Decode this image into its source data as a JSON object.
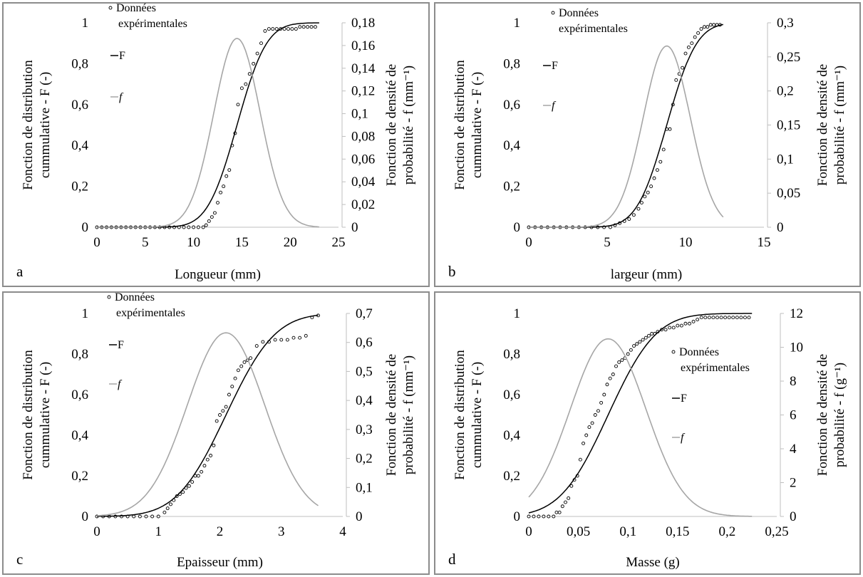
{
  "chart_data": [
    {
      "panel_label": "a",
      "type": "line",
      "xlabel": "Longueur (mm)",
      "ylabel_left": [
        "Fonction de distribution",
        "cummulative - F (-)"
      ],
      "ylabel_right": [
        "Fonction de densité de",
        "probabilité - f (mm⁻¹)"
      ],
      "xlim": [
        0,
        25
      ],
      "xticks": [
        0,
        5,
        10,
        15,
        20,
        25
      ],
      "xtick_labels": [
        "0",
        "5",
        "10",
        "15",
        "20",
        "25"
      ],
      "ylim_left": [
        0,
        1
      ],
      "yticks_left": [
        0,
        0.2,
        0.4,
        0.6,
        0.8,
        1
      ],
      "ytick_labels_left": [
        "0",
        "0,2",
        "0,4",
        "0,6",
        "0,8",
        "1"
      ],
      "ylim_right": [
        0,
        0.18
      ],
      "yticks_right": [
        0,
        0.02,
        0.04,
        0.06,
        0.08,
        0.1,
        0.12,
        0.14,
        0.16,
        0.18
      ],
      "ytick_labels_right": [
        "0",
        "0,02",
        "0,04",
        "0,06",
        "0,08",
        "0,1",
        "0,12",
        "0,14",
        "0,16",
        "0,18"
      ],
      "legend": [
        "Données",
        "expérimentales",
        "F",
        "f"
      ],
      "legend_position": "top-left",
      "series": [
        {
          "name": "Données expérimentales",
          "kind": "points",
          "axis": "left",
          "x": [
            0,
            0.5,
            1,
            1.5,
            2,
            2.5,
            3,
            3.5,
            4,
            4.5,
            5,
            5.5,
            6,
            6.5,
            7,
            7.5,
            8,
            8.5,
            9,
            9.5,
            10,
            10.5,
            11,
            11.3,
            11.6,
            11.9,
            12.2,
            12.5,
            12.8,
            13.1,
            13.4,
            13.7,
            14,
            14.3,
            14.6,
            15,
            15.4,
            15.8,
            16.2,
            16.6,
            17,
            17.4,
            17.8,
            18.2,
            18.6,
            19,
            19.4,
            19.8,
            20.2,
            20.6,
            21,
            21.4,
            21.8,
            22.2,
            22.6
          ],
          "y": [
            0,
            0,
            0,
            0,
            0,
            0,
            0,
            0,
            0,
            0,
            0,
            0,
            0,
            0,
            0,
            0,
            0,
            0,
            0,
            0,
            0,
            0,
            0,
            0.01,
            0.03,
            0.05,
            0.07,
            0.12,
            0.17,
            0.2,
            0.25,
            0.28,
            0.4,
            0.46,
            0.6,
            0.68,
            0.7,
            0.75,
            0.8,
            0.85,
            0.9,
            0.96,
            0.97,
            0.97,
            0.97,
            0.97,
            0.97,
            0.97,
            0.97,
            0.97,
            0.98,
            0.98,
            0.98,
            0.98,
            0.98
          ]
        },
        {
          "name": "F",
          "kind": "normal_cdf",
          "axis": "left",
          "mu": 14.5,
          "sigma": 2.4,
          "x_range": [
            0,
            23
          ]
        },
        {
          "name": "f",
          "kind": "normal_pdf",
          "axis": "right",
          "mu": 14.5,
          "sigma": 2.4,
          "x_range": [
            0,
            23
          ]
        }
      ]
    },
    {
      "panel_label": "b",
      "type": "line",
      "xlabel": "largeur (mm)",
      "ylabel_left": [
        "Fonction de distribution",
        "cummulative - F (-)"
      ],
      "ylabel_right": [
        "Fonction de densité de",
        "probabilité - f (mm⁻¹)"
      ],
      "xlim": [
        0,
        15
      ],
      "xticks": [
        0,
        5,
        10,
        15
      ],
      "xtick_labels": [
        "0",
        "5",
        "10",
        "15"
      ],
      "ylim_left": [
        0,
        1
      ],
      "yticks_left": [
        0,
        0.2,
        0.4,
        0.6,
        0.8,
        1
      ],
      "ytick_labels_left": [
        "0",
        "0,2",
        "0,4",
        "0,6",
        "0,8",
        "1"
      ],
      "ylim_right": [
        0,
        0.3
      ],
      "yticks_right": [
        0,
        0.05,
        0.1,
        0.15,
        0.2,
        0.25,
        0.3
      ],
      "ytick_labels_right": [
        "0",
        "0,05",
        "0,1",
        "0,15",
        "0,2",
        "0,25",
        "0,3"
      ],
      "legend": [
        "Données",
        "expérimentales",
        "F",
        "f"
      ],
      "legend_position": "top-left",
      "series": [
        {
          "name": "Données expérimentales",
          "kind": "points",
          "axis": "left",
          "x": [
            0,
            0.4,
            0.8,
            1.2,
            1.6,
            2,
            2.4,
            2.8,
            3.2,
            3.6,
            4,
            4.4,
            4.8,
            5.2,
            5.5,
            5.8,
            6.1,
            6.4,
            6.7,
            7,
            7.2,
            7.4,
            7.6,
            7.8,
            8,
            8.2,
            8.4,
            8.6,
            8.8,
            9,
            9.2,
            9.4,
            9.6,
            9.8,
            10,
            10.2,
            10.4,
            10.6,
            10.8,
            11,
            11.2,
            11.4,
            11.6,
            11.8,
            12,
            12.2
          ],
          "y": [
            0,
            0,
            0,
            0,
            0,
            0,
            0,
            0,
            0,
            0,
            0,
            0,
            0,
            0,
            0.01,
            0.02,
            0.03,
            0.04,
            0.06,
            0.09,
            0.12,
            0.15,
            0.17,
            0.2,
            0.24,
            0.28,
            0.32,
            0.38,
            0.48,
            0.48,
            0.6,
            0.72,
            0.75,
            0.78,
            0.85,
            0.88,
            0.9,
            0.93,
            0.95,
            0.97,
            0.98,
            0.98,
            0.99,
            0.99,
            0.99,
            0.99
          ]
        },
        {
          "name": "F",
          "kind": "normal_cdf",
          "axis": "left",
          "mu": 8.8,
          "sigma": 1.5,
          "x_range": [
            0,
            12.4
          ]
        },
        {
          "name": "f",
          "kind": "normal_pdf",
          "axis": "right",
          "mu": 8.8,
          "sigma": 1.5,
          "x_range": [
            0,
            12.4
          ]
        }
      ]
    },
    {
      "panel_label": "c",
      "type": "line",
      "xlabel": "Epaisseur (mm)",
      "ylabel_left": [
        "Fonction de distribution",
        "cummulative - F (-)"
      ],
      "ylabel_right": [
        "Fonction de densité de",
        "probabilité - f (mm⁻¹)"
      ],
      "xlim": [
        0,
        4
      ],
      "xticks": [
        0,
        1,
        2,
        3,
        4
      ],
      "xtick_labels": [
        "0",
        "1",
        "2",
        "3",
        "4"
      ],
      "ylim_left": [
        0,
        1
      ],
      "yticks_left": [
        0,
        0.2,
        0.4,
        0.6,
        0.8,
        1
      ],
      "ytick_labels_left": [
        "0",
        "0,2",
        "0,4",
        "0,6",
        "0,8",
        "1"
      ],
      "ylim_right": [
        0,
        0.7
      ],
      "yticks_right": [
        0,
        0.1,
        0.2,
        0.3,
        0.4,
        0.5,
        0.6,
        0.7
      ],
      "ytick_labels_right": [
        "0",
        "0,1",
        "0,2",
        "0,3",
        "0,4",
        "0,5",
        "0,6",
        "0,7"
      ],
      "legend": [
        "Données",
        "expérimentales",
        "F",
        "f"
      ],
      "legend_position": "top-left",
      "series": [
        {
          "name": "Données expérimentales",
          "kind": "points",
          "axis": "left",
          "x": [
            0,
            0.1,
            0.2,
            0.3,
            0.4,
            0.5,
            0.6,
            0.7,
            0.8,
            0.9,
            1,
            1.1,
            1.15,
            1.2,
            1.25,
            1.3,
            1.35,
            1.4,
            1.45,
            1.5,
            1.55,
            1.6,
            1.65,
            1.7,
            1.75,
            1.8,
            1.85,
            1.9,
            1.95,
            2,
            2.05,
            2.1,
            2.15,
            2.2,
            2.25,
            2.3,
            2.35,
            2.4,
            2.45,
            2.5,
            2.6,
            2.7,
            2.8,
            2.9,
            3,
            3.1,
            3.2,
            3.3,
            3.4,
            3.5,
            3.6
          ],
          "y": [
            0,
            0,
            0,
            0,
            0,
            0,
            0,
            0,
            0,
            0,
            0,
            0.02,
            0.04,
            0.06,
            0.08,
            0.1,
            0.11,
            0.12,
            0.14,
            0.15,
            0.17,
            0.2,
            0.2,
            0.22,
            0.25,
            0.28,
            0.3,
            0.35,
            0.47,
            0.5,
            0.52,
            0.54,
            0.6,
            0.64,
            0.68,
            0.72,
            0.74,
            0.76,
            0.77,
            0.78,
            0.84,
            0.86,
            0.86,
            0.87,
            0.87,
            0.87,
            0.88,
            0.88,
            0.89,
            0.98,
            0.99
          ]
        },
        {
          "name": "F",
          "kind": "normal_cdf",
          "axis": "left",
          "mu": 2.1,
          "sigma": 0.63,
          "x_range": [
            0,
            3.6
          ]
        },
        {
          "name": "f",
          "kind": "normal_pdf",
          "axis": "right",
          "mu": 2.1,
          "sigma": 0.63,
          "x_range": [
            0,
            3.6
          ]
        }
      ]
    },
    {
      "panel_label": "d",
      "type": "line",
      "xlabel": "Masse (g)",
      "ylabel_left": [
        "Fonction de distribution",
        "cummulative - F (-)"
      ],
      "ylabel_right": [
        "Fonction de densité de",
        "probabilité - f (g⁻¹)"
      ],
      "xlim": [
        0,
        0.25
      ],
      "xticks": [
        0,
        0.05,
        0.1,
        0.15,
        0.2,
        0.25
      ],
      "xtick_labels": [
        "0",
        "0,05",
        "0,1",
        "0,15",
        "0,2",
        "0,25"
      ],
      "ylim_left": [
        0,
        1
      ],
      "yticks_left": [
        0,
        0.2,
        0.4,
        0.6,
        0.8,
        1
      ],
      "ytick_labels_left": [
        "0",
        "0,2",
        "0,4",
        "0,6",
        "0,8",
        "1"
      ],
      "ylim_right": [
        0,
        12
      ],
      "yticks_right": [
        0,
        2,
        4,
        6,
        8,
        10,
        12
      ],
      "ytick_labels_right": [
        "0",
        "2",
        "4",
        "6",
        "8",
        "10",
        "12"
      ],
      "legend": [
        "Données",
        "expérimentales",
        "F",
        "f"
      ],
      "legend_position": "center-right",
      "series": [
        {
          "name": "Données expérimentales",
          "kind": "points",
          "axis": "left",
          "x": [
            0,
            0.005,
            0.01,
            0.015,
            0.02,
            0.025,
            0.028,
            0.031,
            0.034,
            0.037,
            0.04,
            0.043,
            0.046,
            0.049,
            0.052,
            0.055,
            0.058,
            0.061,
            0.064,
            0.067,
            0.07,
            0.073,
            0.076,
            0.079,
            0.082,
            0.085,
            0.088,
            0.091,
            0.094,
            0.097,
            0.1,
            0.103,
            0.106,
            0.109,
            0.112,
            0.115,
            0.118,
            0.121,
            0.124,
            0.127,
            0.13,
            0.134,
            0.138,
            0.142,
            0.146,
            0.15,
            0.154,
            0.158,
            0.162,
            0.166,
            0.17,
            0.174,
            0.178,
            0.182,
            0.186,
            0.19,
            0.194,
            0.198,
            0.202,
            0.206,
            0.21,
            0.214,
            0.218,
            0.222
          ],
          "y": [
            0,
            0,
            0,
            0,
            0,
            0,
            0.02,
            0.02,
            0.05,
            0.07,
            0.09,
            0.15,
            0.18,
            0.2,
            0.28,
            0.36,
            0.4,
            0.44,
            0.46,
            0.5,
            0.52,
            0.56,
            0.6,
            0.65,
            0.68,
            0.7,
            0.74,
            0.76,
            0.77,
            0.78,
            0.8,
            0.82,
            0.84,
            0.85,
            0.86,
            0.87,
            0.88,
            0.89,
            0.9,
            0.9,
            0.91,
            0.92,
            0.92,
            0.93,
            0.93,
            0.94,
            0.94,
            0.95,
            0.95,
            0.96,
            0.97,
            0.98,
            0.98,
            0.98,
            0.98,
            0.98,
            0.98,
            0.98,
            0.98,
            0.98,
            0.98,
            0.98,
            0.98,
            0.98
          ]
        },
        {
          "name": "F",
          "kind": "normal_cdf",
          "axis": "left",
          "mu": 0.08,
          "sigma": 0.038,
          "x_range": [
            0,
            0.225
          ]
        },
        {
          "name": "f",
          "kind": "normal_pdf",
          "axis": "right",
          "mu": 0.08,
          "sigma": 0.038,
          "x_range": [
            0,
            0.225
          ]
        }
      ]
    }
  ]
}
